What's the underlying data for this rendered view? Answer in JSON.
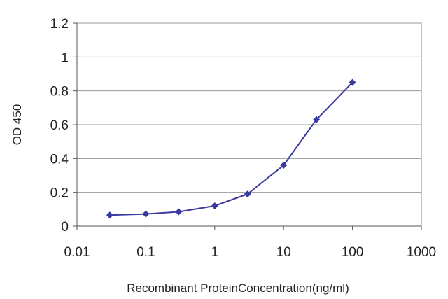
{
  "chart_data": {
    "type": "line",
    "title": "",
    "xlabel": "Recombinant ProteinConcentration(ng/ml)",
    "ylabel": "OD 450",
    "x_scale": "log",
    "xlim": [
      0.01,
      1000
    ],
    "ylim": [
      0,
      1.2
    ],
    "x_ticks": [
      "0.01",
      "0.1",
      "1",
      "10",
      "100",
      "1000"
    ],
    "x_tick_values": [
      0.01,
      0.1,
      1,
      10,
      100,
      1000
    ],
    "y_ticks": [
      "0",
      "0.2",
      "0.4",
      "0.6",
      "0.8",
      "1",
      "1.2"
    ],
    "y_tick_values": [
      0,
      0.2,
      0.4,
      0.6,
      0.8,
      1,
      1.2
    ],
    "grid": "horizontal",
    "legend": "none",
    "series": [
      {
        "x": [
          0.03,
          0.1,
          0.3,
          1,
          3,
          10,
          30,
          100
        ],
        "y": [
          0.065,
          0.072,
          0.085,
          0.12,
          0.19,
          0.36,
          0.63,
          0.85
        ],
        "color": "#3a3aa0",
        "marker": "diamond"
      }
    ]
  }
}
